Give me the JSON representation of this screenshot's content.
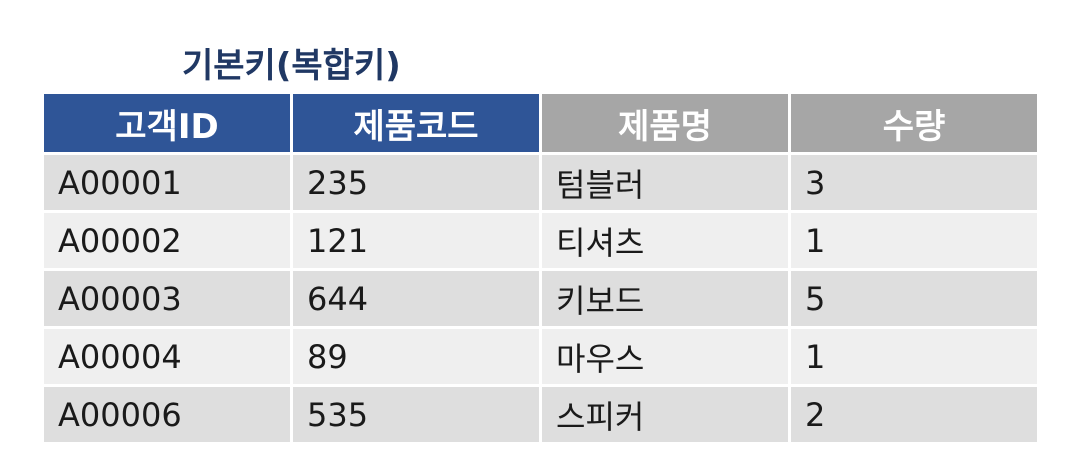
{
  "title": "기본키(복합키)",
  "table": {
    "headers": [
      "고객ID",
      "제품코드",
      "제품명",
      "수량"
    ],
    "rows": [
      [
        "A00001",
        "235",
        "텀블러",
        "3"
      ],
      [
        "A00002",
        "121",
        "티셔츠",
        "1"
      ],
      [
        "A00003",
        "644",
        "키보드",
        "5"
      ],
      [
        "A00004",
        "89",
        "마우스",
        "1"
      ],
      [
        "A00006",
        "535",
        "스피커",
        "2"
      ]
    ]
  },
  "colors": {
    "title": "#203864",
    "key_header": "#2f5597",
    "nonkey_header": "#a6a6a6",
    "row_odd": "#dedede",
    "row_even": "#efefef"
  }
}
